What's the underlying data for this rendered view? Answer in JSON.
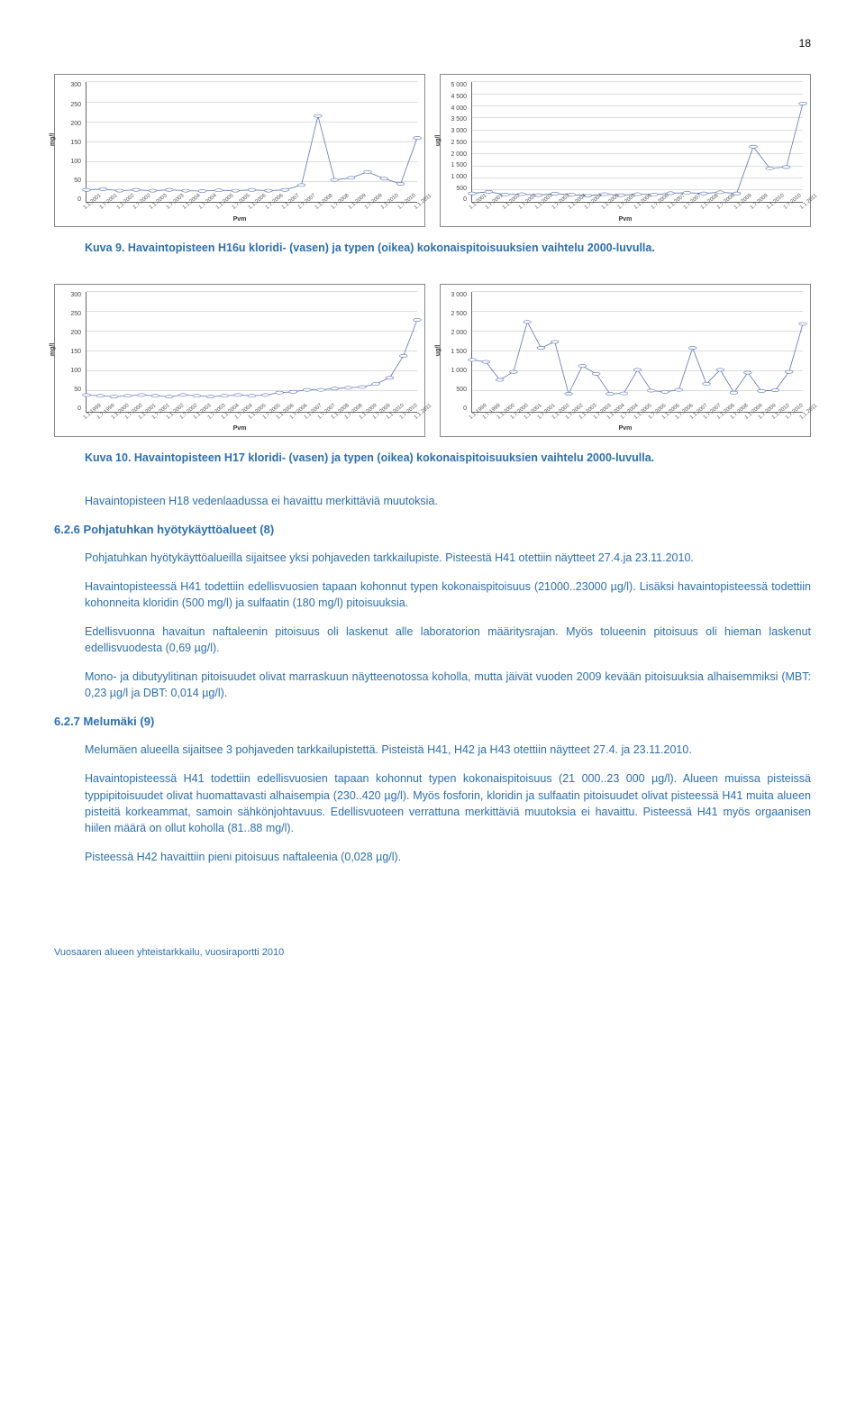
{
  "page_number": "18",
  "colors": {
    "text_blue": "#2b6fb3",
    "line_stroke": "#5b74b8",
    "marker_fill": "#ffffff",
    "marker_stroke": "#5b74b8",
    "grid": "#dddddd",
    "axis": "#666666",
    "border": "#888888"
  },
  "chart1": {
    "type": "line",
    "ylim": [
      0,
      300
    ],
    "ytick_step": 50,
    "y_unit": "mg/l",
    "x_label": "Pvm",
    "x_ticks": [
      "1.1.2001",
      "1.7.2001",
      "1.1.2002",
      "1.7.2002",
      "1.1.2003",
      "1.7.2003",
      "1.1.2004",
      "1.7.2004",
      "1.1.2005",
      "1.7.2005",
      "1.1.2006",
      "1.7.2006",
      "1.1.2007",
      "1.7.2007",
      "1.1.2008",
      "1.7.2008",
      "1.1.2009",
      "1.7.2009",
      "1.1.2010",
      "1.7.2010",
      "1.1.2011"
    ],
    "values": [
      30,
      32,
      28,
      30,
      28,
      30,
      28,
      27,
      29,
      28,
      30,
      28,
      30,
      42,
      215,
      55,
      60,
      75,
      58,
      45,
      160
    ]
  },
  "chart2": {
    "type": "line",
    "ylim": [
      0,
      5000
    ],
    "ytick_step": 500,
    "y_unit": "ug/l",
    "x_label": "Pvm",
    "x_ticks": [
      "1.1.2001",
      "1.7.2001",
      "1.1.2002",
      "1.7.2002",
      "1.1.2003",
      "1.7.2003",
      "1.1.2004",
      "1.7.2004",
      "1.1.2005",
      "1.7.2005",
      "1.1.2006",
      "1.7.2006",
      "1.1.2007",
      "1.7.2007",
      "1.1.2008",
      "1.7.2008",
      "1.1.2009",
      "1.7.2009",
      "1.1.2010",
      "1.7.2010",
      "1.1.2011"
    ],
    "values": [
      350,
      420,
      300,
      320,
      280,
      340,
      300,
      260,
      320,
      280,
      320,
      300,
      360,
      380,
      350,
      400,
      350,
      2300,
      1400,
      1450,
      4100
    ]
  },
  "caption1": "Kuva 9. Havaintopisteen H16u kloridi- (vasen) ja typen (oikea) kokonaispitoisuuksien vaihtelu 2000-luvulla.",
  "chart3": {
    "type": "line",
    "ylim": [
      0,
      300
    ],
    "ytick_step": 50,
    "y_unit": "mg/l",
    "x_label": "Pvm",
    "x_ticks": [
      "1.1.1999",
      "1.7.1999",
      "1.1.2000",
      "1.7.2000",
      "1.1.2001",
      "1.7.2001",
      "1.1.2002",
      "1.7.2002",
      "1.1.2003",
      "1.7.2003",
      "1.1.2004",
      "1.7.2004",
      "1.1.2005",
      "1.7.2005",
      "1.1.2006",
      "1.7.2006",
      "1.1.2007",
      "1.7.2007",
      "1.1.2008",
      "1.7.2008",
      "1.1.2009",
      "1.7.2009",
      "1.1.2010",
      "1.7.2010",
      "1.1.2011"
    ],
    "values": [
      42,
      40,
      38,
      40,
      42,
      40,
      38,
      42,
      40,
      38,
      40,
      42,
      40,
      42,
      48,
      50,
      55,
      55,
      58,
      60,
      62,
      70,
      85,
      140,
      230
    ]
  },
  "chart4": {
    "type": "line",
    "ylim": [
      0,
      3000
    ],
    "ytick_step": 500,
    "y_unit": "ug/l",
    "x_label": "Pvm",
    "x_ticks": [
      "1.1.1999",
      "1.7.1999",
      "1.1.2000",
      "1.7.2000",
      "1.1.2001",
      "1.7.2001",
      "1.1.2002",
      "1.7.2002",
      "1.1.2003",
      "1.7.2003",
      "1.1.2004",
      "1.7.2004",
      "1.1.2005",
      "1.7.2005",
      "1.1.2006",
      "1.7.2006",
      "1.1.2007",
      "1.7.2007",
      "1.1.2008",
      "1.7.2008",
      "1.1.2009",
      "1.7.2009",
      "1.1.2010",
      "1.7.2010",
      "1.1.2011"
    ],
    "values": [
      1300,
      1250,
      800,
      1000,
      2250,
      1600,
      1750,
      450,
      1150,
      950,
      450,
      460,
      1050,
      530,
      500,
      550,
      1600,
      700,
      1050,
      480,
      980,
      520,
      540,
      1000,
      2200
    ]
  },
  "caption2": "Kuva 10. Havaintopisteen H17 kloridi- (vasen) ja typen (oikea) kokonaispitoisuuksien vaihtelu 2000-luvulla.",
  "para_h18": "Havaintopisteen H18 vedenlaadussa ei havaittu merkittäviä muutoksia.",
  "section_626": "6.2.6 Pohjatuhkan hyötykäyttöalueet (8)",
  "para_626_1": "Pohjatuhkan hyötykäyttöalueilla sijaitsee yksi pohjaveden tarkkailupiste. Pisteestä H41 otettiin näytteet 27.4.ja 23.11.2010.",
  "para_626_2": "Havaintopisteessä H41 todettiin edellisvuosien tapaan kohonnut typen kokonaispitoisuus (21000..23000 µg/l). Lisäksi havaintopisteessä todettiin kohonneita kloridin (500 mg/l) ja sulfaatin (180 mg/l) pitoisuuksia.",
  "para_626_3": "Edellisvuonna havaitun naftaleenin pitoisuus oli laskenut alle laboratorion määritysrajan. Myös tolueenin pitoisuus oli hieman laskenut edellisvuodesta (0,69 µg/l).",
  "para_626_4": "Mono- ja dibutyylitinan pitoisuudet olivat marraskuun näytteenotossa koholla, mutta jäivät vuoden 2009 kevään pitoisuuksia alhaisemmiksi (MBT: 0,23 µg/l ja DBT: 0,014 µg/l).",
  "section_627": "6.2.7 Melumäki (9)",
  "para_627_1": "Melumäen alueella sijaitsee 3 pohjaveden tarkkailupistettä. Pisteistä H41, H42 ja H43 otettiin näytteet 27.4. ja 23.11.2010.",
  "para_627_2": "Havaintopisteessä H41 todettiin edellisvuosien tapaan kohonnut typen kokonaispitoisuus (21 000..23 000 µg/l). Alueen muissa pisteissä typpipitoisuudet olivat huomattavasti alhaisempia (230..420 µg/l). Myös fosforin, kloridin ja sulfaatin pitoisuudet olivat pisteessä H41 muita alueen pisteitä korkeammat, samoin sähkönjohtavuus. Edellisvuoteen verrattuna merkittäviä muutoksia ei havaittu. Pisteessä H41 myös orgaanisen hiilen määrä on ollut koholla (81..88 mg/l).",
  "para_627_3": "Pisteessä H42 havaittiin pieni pitoisuus naftaleenia (0,028 µg/l).",
  "footer": "Vuosaaren alueen yhteistarkkailu, vuosiraportti 2010"
}
